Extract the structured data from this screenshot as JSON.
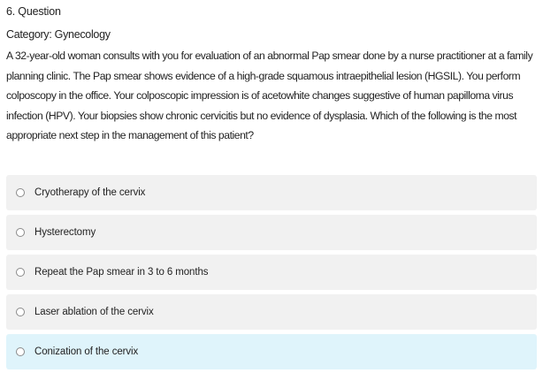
{
  "question": {
    "number_label": "6. Question",
    "category_label": "Category: Gynecology",
    "text": "A 32-year-old woman consults with you for evaluation of an abnormal Pap smear done by a nurse practitioner at a family planning clinic. The Pap smear shows evidence of a high-grade squamous intraepithelial lesion (HGSIL). You perform colposcopy in the office. Your colposcopic impression is of acetowhite changes suggestive of human papilloma virus infection (HPV). Your biopsies show chronic cervicitis but no evidence of dysplasia. Which of the following is the most appropriate next step in the management of this patient?"
  },
  "options": [
    {
      "label": "Cryotherapy of the cervix",
      "selected": false
    },
    {
      "label": "Hysterectomy",
      "selected": false
    },
    {
      "label": "Repeat the Pap smear in 3 to 6 months",
      "selected": false
    },
    {
      "label": "Laser ablation of the cervix",
      "selected": false
    },
    {
      "label": "Conization of the cervix",
      "selected": true
    }
  ],
  "colors": {
    "option_bg": "#f1f1f1",
    "option_selected_bg": "#dff4fb",
    "text": "#222222"
  }
}
